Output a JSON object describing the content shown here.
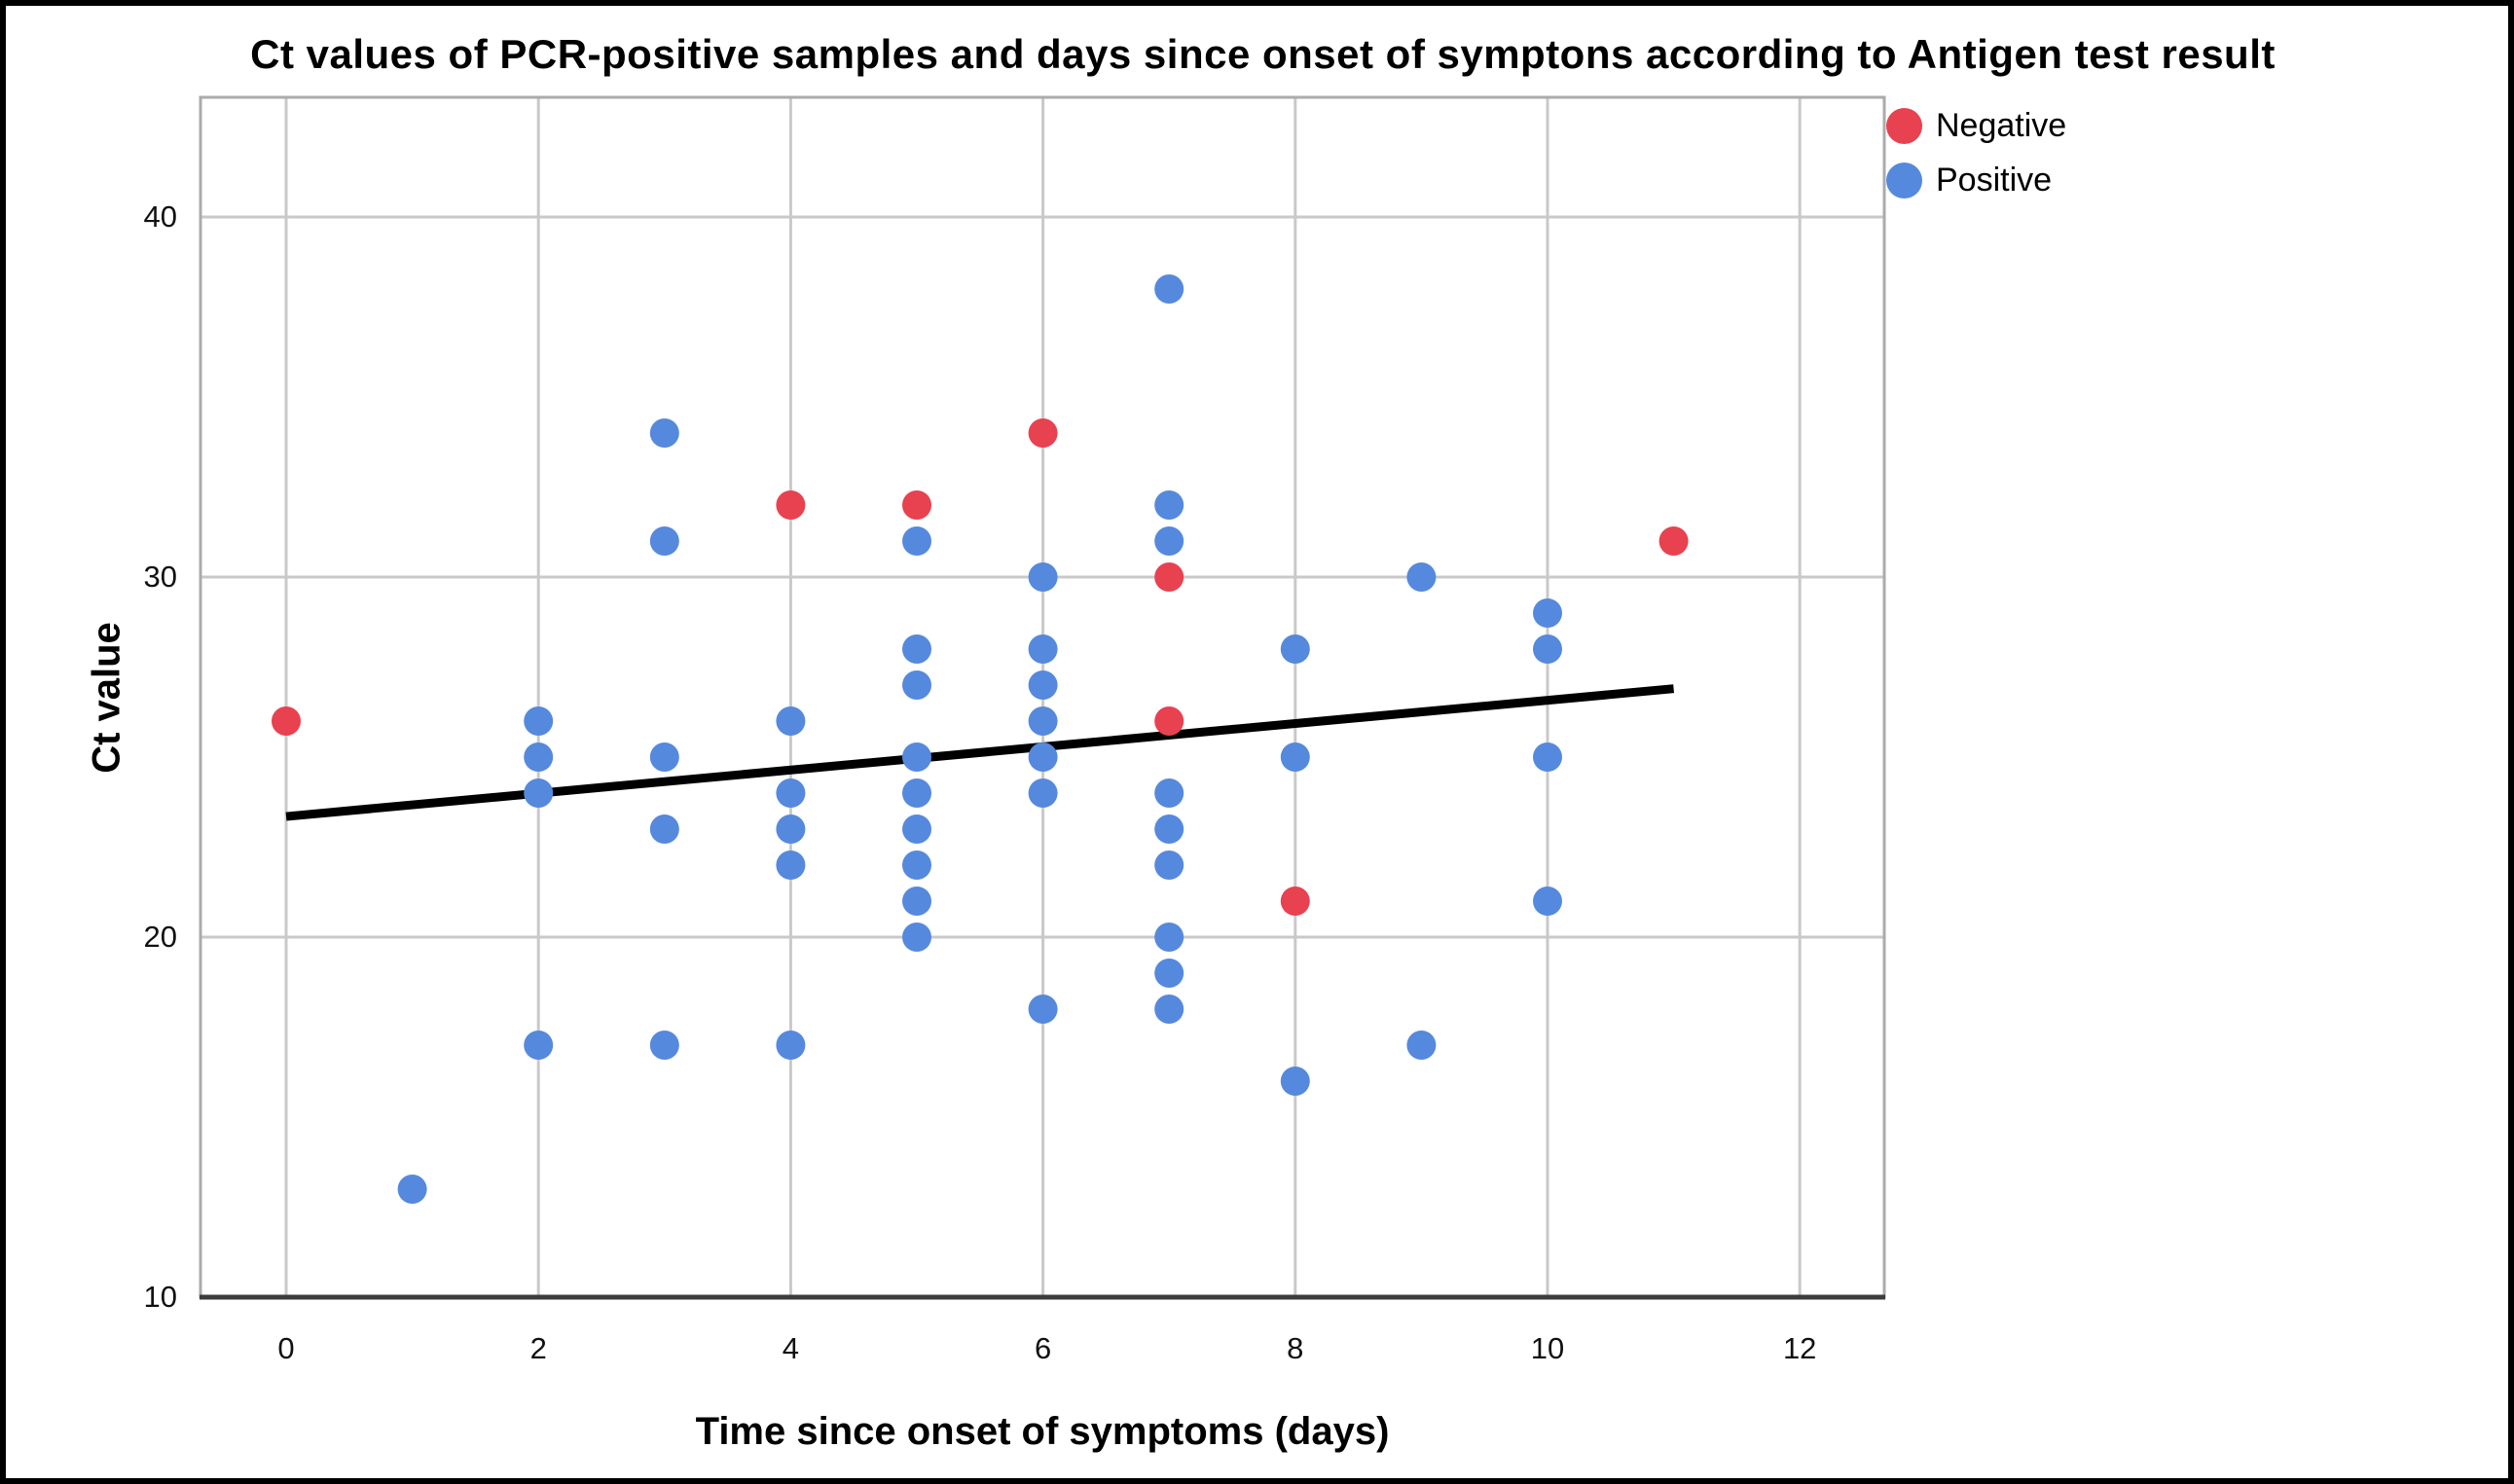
{
  "figure": {
    "background_color": "#ffffff",
    "border_color": "#000000"
  },
  "chart_data": {
    "type": "scatter",
    "title": "Ct values of PCR-positive samples and days since onset of symptons according to Antigen test result",
    "xlabel": "Time since onset of symptoms (days)",
    "ylabel": "Ct value",
    "x_ticks": [
      0,
      2,
      4,
      6,
      8,
      10,
      12
    ],
    "y_ticks": [
      10,
      20,
      30,
      40
    ],
    "xlim": [
      -0.68,
      12.67
    ],
    "ylim": [
      10,
      43.3
    ],
    "grid": true,
    "grid_color": "#c9c9c9",
    "frame_color": "#ababab",
    "axis_color": "#3c3c3c",
    "legend": {
      "position": "top-right",
      "entries": [
        {
          "label": "Negative",
          "color": "#e8414f"
        },
        {
          "label": "Positive",
          "color": "#5589dd"
        }
      ]
    },
    "series": [
      {
        "name": "Negative",
        "color": "#e8414f",
        "points": [
          [
            0,
            26
          ],
          [
            4,
            32
          ],
          [
            5,
            32
          ],
          [
            6,
            34
          ],
          [
            7,
            30
          ],
          [
            7,
            26
          ],
          [
            8,
            21
          ],
          [
            11,
            31
          ]
        ]
      },
      {
        "name": "Positive",
        "color": "#5589dd",
        "points": [
          [
            1,
            13
          ],
          [
            2,
            26
          ],
          [
            2,
            25
          ],
          [
            2,
            24
          ],
          [
            2,
            17
          ],
          [
            3,
            34
          ],
          [
            3,
            31
          ],
          [
            3,
            25
          ],
          [
            3,
            23
          ],
          [
            3,
            17
          ],
          [
            4,
            26
          ],
          [
            4,
            24
          ],
          [
            4,
            23
          ],
          [
            4,
            22
          ],
          [
            4,
            17
          ],
          [
            5,
            31
          ],
          [
            5,
            28
          ],
          [
            5,
            27
          ],
          [
            5,
            25
          ],
          [
            5,
            24
          ],
          [
            5,
            23
          ],
          [
            5,
            22
          ],
          [
            5,
            21
          ],
          [
            5,
            20
          ],
          [
            6,
            30
          ],
          [
            6,
            28
          ],
          [
            6,
            27
          ],
          [
            6,
            26
          ],
          [
            6,
            25
          ],
          [
            6,
            24
          ],
          [
            6,
            18
          ],
          [
            7,
            38
          ],
          [
            7,
            32
          ],
          [
            7,
            31
          ],
          [
            7,
            24
          ],
          [
            7,
            23
          ],
          [
            7,
            22
          ],
          [
            7,
            20
          ],
          [
            7,
            19
          ],
          [
            7,
            18
          ],
          [
            8,
            28
          ],
          [
            8,
            25
          ],
          [
            8,
            16
          ],
          [
            9,
            30
          ],
          [
            9,
            17
          ],
          [
            10,
            29
          ],
          [
            10,
            28
          ],
          [
            10,
            25
          ],
          [
            10,
            21
          ]
        ]
      }
    ],
    "trend_line": {
      "color": "#000000",
      "from": [
        0,
        23.35
      ],
      "to": [
        11,
        26.9
      ]
    }
  }
}
